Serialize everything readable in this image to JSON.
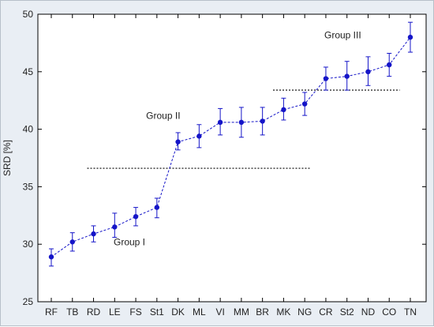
{
  "chart_data": {
    "type": "line",
    "title": "",
    "xlabel": "",
    "ylabel": "SRD [%]",
    "ylim": [
      25,
      50
    ],
    "yticks": [
      25,
      30,
      35,
      40,
      45,
      50
    ],
    "grid": false,
    "legend": "none",
    "categories": [
      "RF",
      "TB",
      "RD",
      "LE",
      "FS",
      "St1",
      "DK",
      "ML",
      "VI",
      "MM",
      "BR",
      "MK",
      "NG",
      "CR",
      "St2",
      "ND",
      "CO",
      "TN"
    ],
    "series": [
      {
        "values": [
          28.9,
          30.2,
          30.9,
          31.5,
          32.4,
          33.2,
          38.9,
          39.4,
          40.6,
          40.6,
          40.7,
          41.7,
          42.2,
          44.4,
          44.6,
          45.0,
          45.6,
          48.0
        ],
        "error_low": [
          28.1,
          29.4,
          30.2,
          30.6,
          31.6,
          32.3,
          38.2,
          38.4,
          39.5,
          39.3,
          39.5,
          40.8,
          41.2,
          43.4,
          43.4,
          43.8,
          44.6,
          46.7
        ],
        "error_high": [
          29.6,
          31.0,
          31.6,
          32.7,
          33.2,
          34.0,
          39.7,
          40.4,
          41.8,
          41.9,
          41.9,
          42.7,
          43.2,
          45.4,
          45.9,
          46.3,
          46.6,
          49.3
        ]
      }
    ],
    "separators": [
      {
        "from": 1.7,
        "to": 12.3,
        "y": 36.6
      },
      {
        "from": 10.5,
        "to": 16.5,
        "y": 43.4
      }
    ],
    "annotations": [
      {
        "text": "Group I",
        "x": 3.7,
        "y": 29.9
      },
      {
        "text": "Group II",
        "x": 5.3,
        "y": 40.9
      },
      {
        "text": "Group III",
        "x": 13.8,
        "y": 47.9
      }
    ],
    "colors": {
      "series": "#1515c8",
      "frame_bg": "#e9eef4",
      "plot_bg": "#ffffff",
      "axis": "#000000",
      "separator": "#000000"
    }
  }
}
